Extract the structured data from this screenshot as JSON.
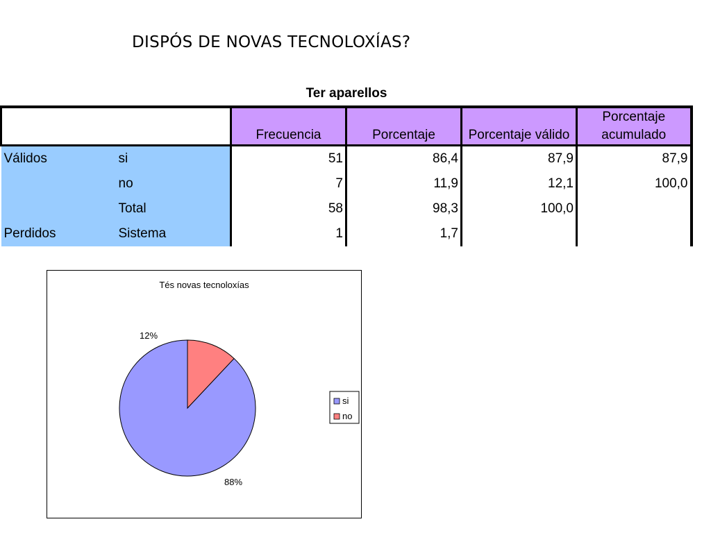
{
  "slide": {
    "title": "DISPÓS DE NOVAS TECNOLOXÍAS?"
  },
  "table": {
    "caption": "Ter aparellos",
    "headers": [
      "Frecuencia",
      "Porcentaje",
      "Porcentaje válido",
      "Porcentaje acumulado"
    ],
    "header_lines": {
      "acum_line1": "Porcentaje",
      "acum_line2": "acumulado"
    },
    "rows": [
      {
        "group": "Válidos",
        "label": "si",
        "frecuencia": "51",
        "porcentaje": "86,4",
        "porcentaje_valido": "87,9",
        "porcentaje_acumulado": "87,9"
      },
      {
        "group": "",
        "label": "no",
        "frecuencia": "7",
        "porcentaje": "11,9",
        "porcentaje_valido": "12,1",
        "porcentaje_acumulado": "100,0"
      },
      {
        "group": "",
        "label": "Total",
        "frecuencia": "58",
        "porcentaje": "98,3",
        "porcentaje_valido": "100,0",
        "porcentaje_acumulado": ""
      },
      {
        "group": "Perdidos",
        "label": "Sistema",
        "frecuencia": "1",
        "porcentaje": "1,7",
        "porcentaje_valido": "",
        "porcentaje_acumulado": ""
      }
    ],
    "colors": {
      "header_bg": "#cc99ff",
      "row_header_bg": "#99ccff"
    }
  },
  "chart_data": {
    "type": "pie",
    "title": "Tés novas tecnoloxías",
    "categories": [
      "si",
      "no"
    ],
    "values": [
      88,
      12
    ],
    "labels": [
      "88%",
      "12%"
    ],
    "colors": [
      "#9999ff",
      "#ff8080"
    ],
    "legend_position": "right"
  }
}
